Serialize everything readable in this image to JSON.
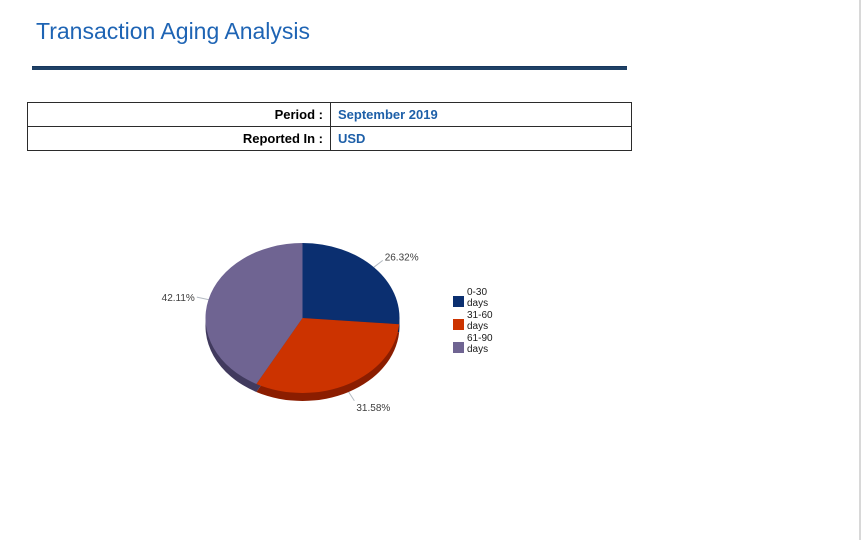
{
  "page": {
    "title": "Transaction Aging Analysis"
  },
  "info_table": {
    "rows": [
      {
        "label": "Period :",
        "value": "September 2019"
      },
      {
        "label": "Reported In :",
        "value": "USD"
      }
    ]
  },
  "chart_data": {
    "type": "pie",
    "title": "Transaction Aging Analysis",
    "categories": [
      "0-30 days",
      "31-60 days",
      "61-90 days"
    ],
    "values": [
      26.32,
      31.58,
      42.11
    ],
    "labels": [
      "26.32%",
      "31.58%",
      "42.11%"
    ],
    "colors": [
      "#0B2F70",
      "#CC3300",
      "#6F6492"
    ],
    "side_colors": [
      "#081F4C",
      "#8B1D00",
      "#413A5E"
    ],
    "effect_3d": true,
    "legend_position": "right",
    "legend_items": [
      {
        "range": "0-30",
        "unit": "days"
      },
      {
        "range": "31-60",
        "unit": "days"
      },
      {
        "range": "61-90",
        "unit": "days"
      }
    ]
  },
  "accents": {
    "title_color": "#1E64B4",
    "rule_color": "#1F4166",
    "value_color": "#1D5FA8",
    "leader_line_color": "#B3BAC2",
    "percent_label_color": "#3D3D3D"
  }
}
